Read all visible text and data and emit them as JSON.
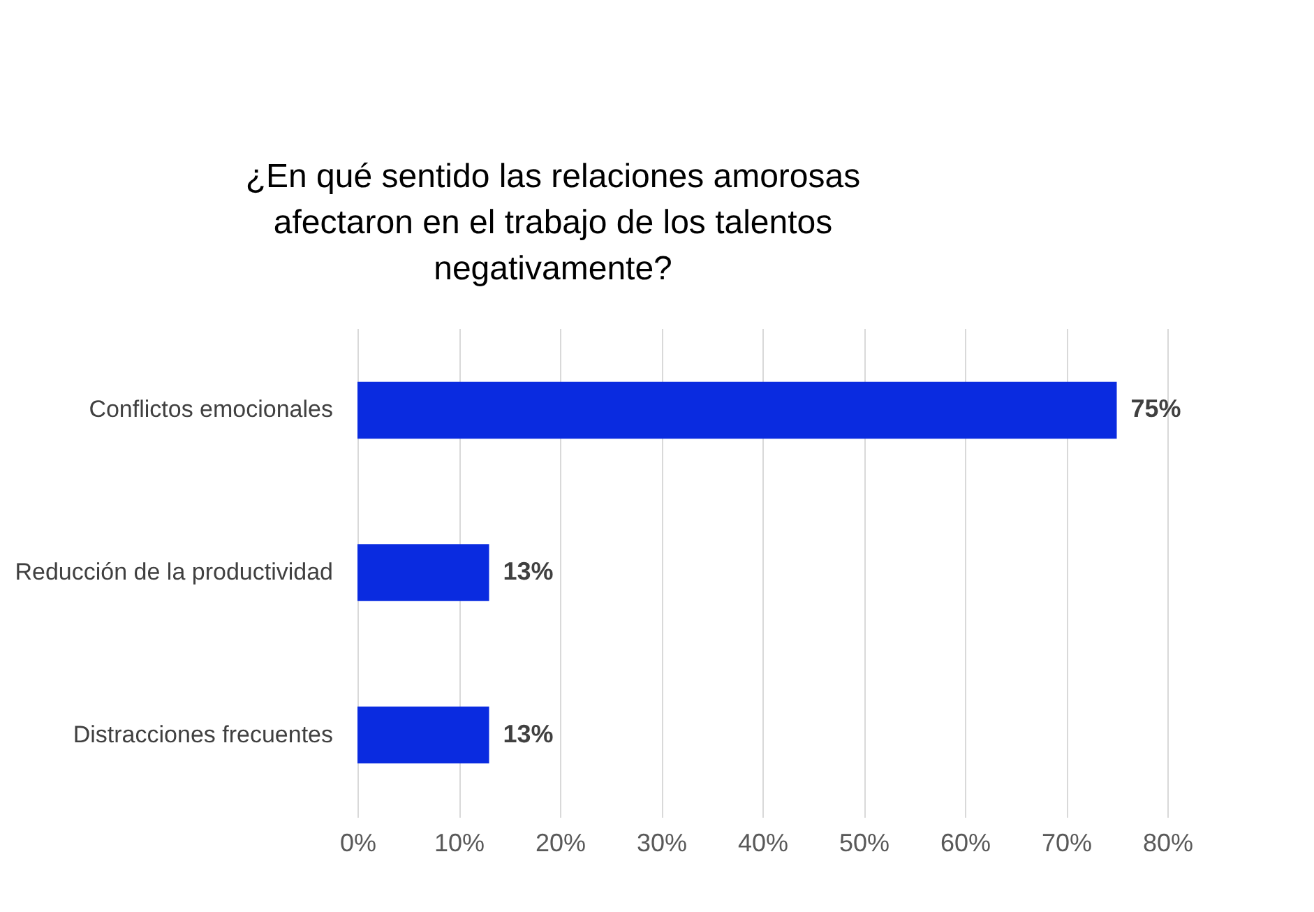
{
  "chart_data": {
    "type": "bar",
    "orientation": "horizontal",
    "title": "¿En qué sentido las relaciones amorosas\nafectaron en el trabajo de los talentos\nnegativamente?",
    "categories": [
      "Conflictos emocionales",
      "Reducción de la productividad",
      "Distracciones frecuentes"
    ],
    "values": [
      75,
      13,
      13
    ],
    "color": "#0a2be0",
    "value_labels": [
      "75%",
      "13%",
      "13%"
    ],
    "xlim": [
      0,
      80
    ],
    "xticks": [
      {
        "value": 0,
        "label": "0%"
      },
      {
        "value": 10,
        "label": "10%"
      },
      {
        "value": 20,
        "label": "20%"
      },
      {
        "value": 30,
        "label": "30%"
      },
      {
        "value": 40,
        "label": "40%"
      },
      {
        "value": 50,
        "label": "50%"
      },
      {
        "value": 60,
        "label": "60%"
      },
      {
        "value": 70,
        "label": "70%"
      },
      {
        "value": 80,
        "label": "80%"
      }
    ],
    "grid": "x"
  }
}
